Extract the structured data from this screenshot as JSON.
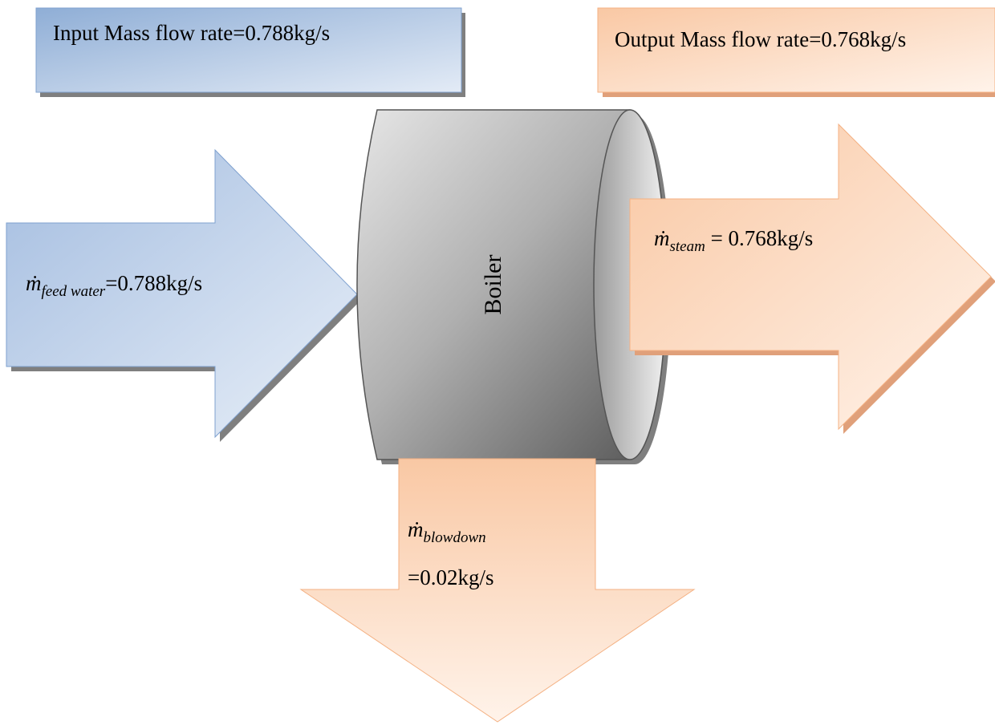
{
  "input_box": {
    "label": "Input Mass flow rate=0.788kg/s"
  },
  "output_box": {
    "label": "Output Mass flow rate=0.768kg/s"
  },
  "boiler": {
    "label": "Boiler"
  },
  "flows": [
    {
      "symbol": "ṁ",
      "subscript": "feed water",
      "value": "=0.788kg/s"
    },
    {
      "symbol": "ṁ",
      "subscript": "steam",
      "value": "= 0.768kg/s"
    },
    {
      "symbol": "ṁ",
      "subscript": "blowdown",
      "value": "=0.02kg/s"
    }
  ]
}
